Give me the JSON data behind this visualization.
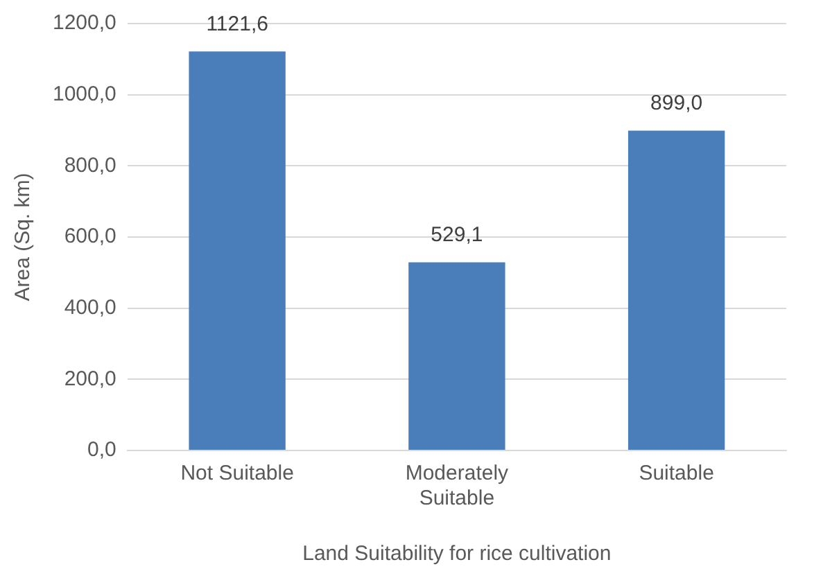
{
  "chart_data": {
    "type": "bar",
    "xlabel": "Land Suitability for rice cultivation",
    "ylabel": "Area (Sq. km)",
    "categories": [
      "Not Suitable",
      "Moderately Suitable",
      "Suitable"
    ],
    "values": [
      1121.6,
      529.1,
      899.0
    ],
    "value_labels": [
      "1121,6",
      "529,1",
      "899,0"
    ],
    "color": "#4a7ebb",
    "ylim": [
      0,
      1200
    ],
    "yticks": [
      {
        "value": 0,
        "label": "0,0"
      },
      {
        "value": 200,
        "label": "200,0"
      },
      {
        "value": 400,
        "label": "400,0"
      },
      {
        "value": 600,
        "label": "600,0"
      },
      {
        "value": 800,
        "label": "800,0"
      },
      {
        "value": 1000,
        "label": "1000,0"
      },
      {
        "value": 1200,
        "label": "1200,0"
      }
    ],
    "grid": "y",
    "legend": false
  }
}
